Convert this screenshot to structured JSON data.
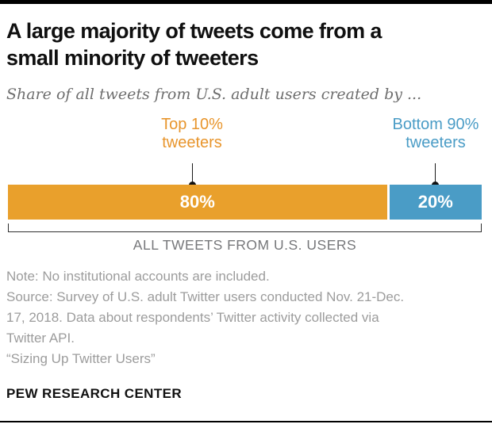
{
  "header": {
    "title_line1": "A large majority of tweets come from a",
    "title_line2": "small minority of tweeters",
    "subtitle": "Share of all tweets from U.S. adult users created by ..."
  },
  "chart": {
    "callout_labels": [
      {
        "line1": "Top 10%",
        "line2": "tweeters",
        "color": "#E8952C"
      },
      {
        "line1": "Bottom 90%",
        "line2": "tweeters",
        "color": "#4A9CC6"
      }
    ],
    "axis_label": "ALL TWEETS FROM U.S. USERS"
  },
  "chart_data": {
    "type": "bar",
    "subtype": "stacked-horizontal-single-bar",
    "title": "A large majority of tweets come from a small minority of tweeters",
    "subtitle": "Share of all tweets from U.S. adult users created by ...",
    "categories": [
      "Top 10% tweeters",
      "Bottom 90% tweeters"
    ],
    "values": [
      80,
      20
    ],
    "value_labels": [
      "80%",
      "20%"
    ],
    "colors": [
      "#E9A02C",
      "#4A9CC6"
    ],
    "xlim": [
      0,
      100
    ],
    "axis_label": "ALL TWEETS FROM U.S. USERS",
    "legend_position": "callouts-above-bar",
    "grid": false
  },
  "footer": {
    "note_lines": [
      "Note: No institutional accounts are included.",
      "Source: Survey of U.S. adult Twitter users conducted Nov. 21-Dec. 17, 2018. Data about respondents’ Twitter activity collected via Twitter API.",
      "“Sizing Up Twitter Users”"
    ],
    "brand": "PEW RESEARCH CENTER"
  }
}
